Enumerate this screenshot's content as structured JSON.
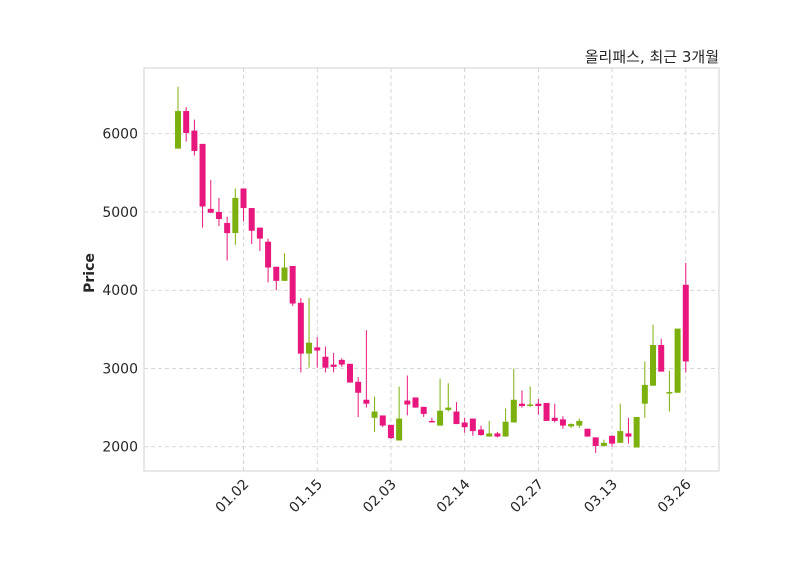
{
  "chart_data": {
    "type": "candlestick",
    "title": "올리패스, 최근 3개월",
    "xlabel": "",
    "ylabel": "Price",
    "ylim": [
      1690,
      6840
    ],
    "grid": true,
    "colors": {
      "up": "#e8177e",
      "down": "#7cb00e"
    },
    "candle_format": [
      "open",
      "high",
      "low",
      "close"
    ],
    "x_ticks": [
      {
        "index": 8,
        "label": "01.02"
      },
      {
        "index": 17,
        "label": "01.15"
      },
      {
        "index": 26,
        "label": "02.03"
      },
      {
        "index": 35,
        "label": "02.14"
      },
      {
        "index": 44,
        "label": "02.27"
      },
      {
        "index": 53,
        "label": "03.13"
      },
      {
        "index": 62,
        "label": "03.26"
      }
    ],
    "y_ticks": [
      2000,
      3000,
      4000,
      5000,
      6000
    ],
    "candles": [
      [
        6290,
        6600,
        5810,
        5810
      ],
      [
        6010,
        6340,
        5900,
        6290
      ],
      [
        5780,
        6180,
        5720,
        6040
      ],
      [
        5070,
        5870,
        4800,
        5870
      ],
      [
        4990,
        5410,
        4990,
        5040
      ],
      [
        4910,
        5180,
        4820,
        5000
      ],
      [
        4730,
        4940,
        4380,
        4860
      ],
      [
        5180,
        5300,
        4580,
        4730
      ],
      [
        5050,
        5300,
        4880,
        5300
      ],
      [
        4760,
        5050,
        4590,
        5050
      ],
      [
        4660,
        4800,
        4500,
        4800
      ],
      [
        4290,
        4660,
        4100,
        4620
      ],
      [
        4120,
        4300,
        4000,
        4300
      ],
      [
        4290,
        4470,
        4120,
        4120
      ],
      [
        3830,
        4310,
        3800,
        4310
      ],
      [
        3190,
        3900,
        2950,
        3840
      ],
      [
        3330,
        3900,
        3010,
        3190
      ],
      [
        3230,
        3400,
        3010,
        3270
      ],
      [
        3010,
        3280,
        2950,
        3150
      ],
      [
        3020,
        3200,
        2950,
        3050
      ],
      [
        3050,
        3130,
        3020,
        3110
      ],
      [
        2820,
        3060,
        2820,
        3060
      ],
      [
        2690,
        2890,
        2380,
        2830
      ],
      [
        2550,
        3490,
        2500,
        2600
      ],
      [
        2450,
        2640,
        2190,
        2370
      ],
      [
        2270,
        2400,
        2250,
        2400
      ],
      [
        2110,
        2280,
        2100,
        2280
      ],
      [
        2360,
        2770,
        2080,
        2080
      ],
      [
        2540,
        2910,
        2400,
        2590
      ],
      [
        2500,
        2630,
        2500,
        2630
      ],
      [
        2420,
        2510,
        2380,
        2510
      ],
      [
        2320,
        2370,
        2310,
        2330
      ],
      [
        2460,
        2870,
        2270,
        2270
      ],
      [
        2500,
        2810,
        2450,
        2470
      ],
      [
        2290,
        2570,
        2290,
        2450
      ],
      [
        2250,
        2370,
        2180,
        2310
      ],
      [
        2200,
        2360,
        2140,
        2360
      ],
      [
        2150,
        2270,
        2140,
        2220
      ],
      [
        2170,
        2330,
        2130,
        2130
      ],
      [
        2130,
        2190,
        2120,
        2170
      ],
      [
        2320,
        2490,
        2130,
        2130
      ],
      [
        2600,
        3000,
        2310,
        2310
      ],
      [
        2520,
        2720,
        2500,
        2550
      ],
      [
        2540,
        2770,
        2510,
        2520
      ],
      [
        2520,
        2610,
        2410,
        2550
      ],
      [
        2330,
        2560,
        2330,
        2560
      ],
      [
        2330,
        2550,
        2310,
        2370
      ],
      [
        2270,
        2390,
        2230,
        2350
      ],
      [
        2290,
        2300,
        2240,
        2260
      ],
      [
        2330,
        2360,
        2240,
        2270
      ],
      [
        2130,
        2230,
        2130,
        2230
      ],
      [
        2010,
        2120,
        1920,
        2120
      ],
      [
        2050,
        2090,
        2000,
        2010
      ],
      [
        2040,
        2140,
        2000,
        2140
      ],
      [
        2200,
        2550,
        2050,
        2050
      ],
      [
        2130,
        2370,
        2040,
        2170
      ],
      [
        2380,
        2380,
        1990,
        1990
      ],
      [
        2790,
        3090,
        2370,
        2550
      ],
      [
        3300,
        3560,
        2780,
        2780
      ],
      [
        2960,
        3380,
        2960,
        3300
      ],
      [
        2700,
        2970,
        2450,
        2680
      ],
      [
        3510,
        3510,
        2690,
        2690
      ],
      [
        3090,
        4350,
        2950,
        4070
      ]
    ]
  }
}
